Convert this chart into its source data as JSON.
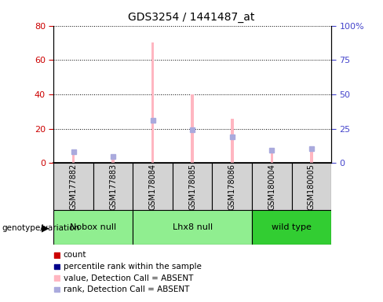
{
  "title": "GDS3254 / 1441487_at",
  "samples": [
    "GSM177882",
    "GSM177883",
    "GSM178084",
    "GSM178085",
    "GSM178086",
    "GSM180004",
    "GSM180005"
  ],
  "group_list": [
    "Nobox null",
    "Lhx8 null",
    "wild type"
  ],
  "group_spans": [
    2,
    3,
    2
  ],
  "group_colors": [
    "#90EE90",
    "#90EE90",
    "#32CD32"
  ],
  "absent_value_bars": [
    5.5,
    4.0,
    70.0,
    40.0,
    26.0,
    6.0,
    10.0
  ],
  "absent_rank_markers": [
    8.5,
    4.5,
    31.0,
    24.0,
    19.0,
    9.5,
    10.5
  ],
  "ylim_left": [
    0,
    80
  ],
  "ylim_right": [
    0,
    100
  ],
  "yticks_left": [
    0,
    20,
    40,
    60,
    80
  ],
  "yticks_right": [
    0,
    25,
    50,
    75,
    100
  ],
  "yticklabels_left": [
    "0",
    "20",
    "40",
    "60",
    "80"
  ],
  "yticklabels_right": [
    "0",
    "25",
    "50",
    "75",
    "100%"
  ],
  "left_tick_color": "#CC0000",
  "right_tick_color": "#4444CC",
  "bar_bg_color": "#D3D3D3",
  "plot_bg_color": "#FFFFFF",
  "absent_bar_color": "#FFB6C1",
  "absent_rank_color": "#AAAADD",
  "count_color": "#CC0000",
  "rank_color": "#00008B",
  "legend_items": [
    {
      "label": "count",
      "color": "#CC0000"
    },
    {
      "label": "percentile rank within the sample",
      "color": "#00008B"
    },
    {
      "label": "value, Detection Call = ABSENT",
      "color": "#FFB6C1"
    },
    {
      "label": "rank, Detection Call = ABSENT",
      "color": "#AAAADD"
    }
  ],
  "figsize": [
    4.88,
    3.84
  ],
  "dpi": 100
}
